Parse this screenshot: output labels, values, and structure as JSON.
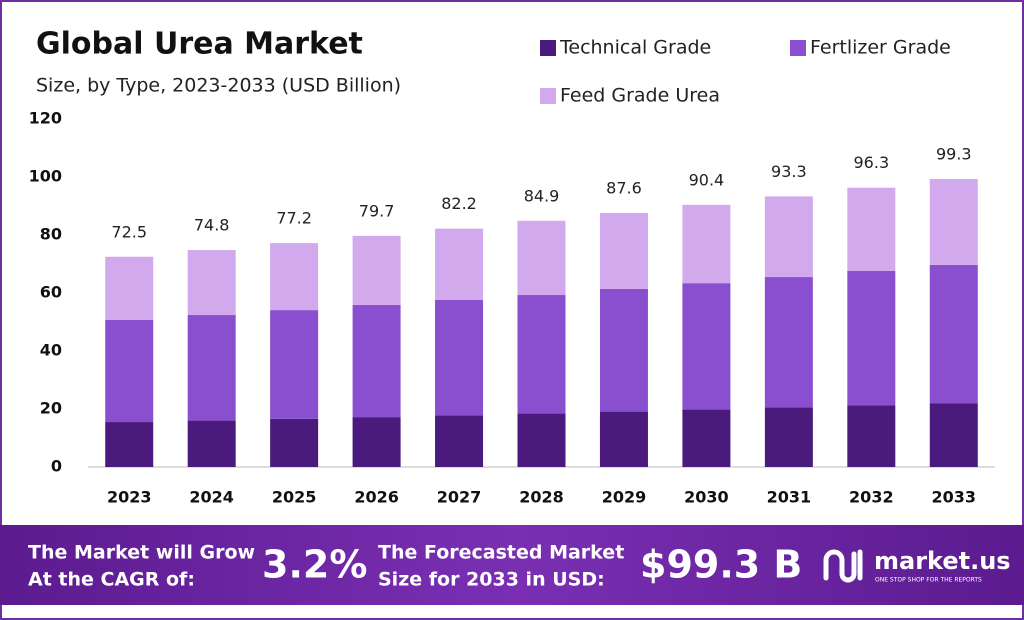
{
  "chart_data": {
    "type": "stacked_bar",
    "title": "Global Urea Market",
    "subtitle": "Size, by Type, 2023-2033 (USD Billion)",
    "categories": [
      "2023",
      "2024",
      "2025",
      "2026",
      "2027",
      "2028",
      "2029",
      "2030",
      "2031",
      "2032",
      "2033"
    ],
    "series": [
      {
        "name": "Technical Grade",
        "color": "#4a1a7c",
        "values": [
          15.5,
          16.0,
          16.6,
          17.2,
          17.8,
          18.5,
          19.1,
          19.8,
          20.5,
          21.2,
          21.9
        ]
      },
      {
        "name": "Fertlizer Grade",
        "color": "#8a4fcf",
        "values": [
          35.2,
          36.4,
          37.5,
          38.7,
          39.8,
          40.8,
          42.3,
          43.6,
          45.0,
          46.4,
          47.8
        ]
      },
      {
        "name": "Feed Grade Urea",
        "color": "#d2a9ec",
        "values": [
          21.8,
          22.4,
          23.1,
          23.8,
          24.6,
          25.6,
          26.2,
          27.0,
          27.8,
          28.7,
          29.6
        ]
      }
    ],
    "totals": [
      72.5,
      74.8,
      77.2,
      79.7,
      82.2,
      84.9,
      87.6,
      90.4,
      93.3,
      96.3,
      99.3
    ],
    "ylim": [
      0,
      120
    ],
    "yticks": [
      0,
      20,
      40,
      60,
      80,
      100,
      120
    ],
    "grid": false
  },
  "footer": {
    "cagr_text": [
      "The Market will Grow",
      "At the CAGR of:"
    ],
    "cagr": "3.2%",
    "forecast_text": [
      "The Forecasted Market",
      "Size for 2033 in USD:"
    ],
    "forecast": "$99.3 B",
    "brand": "market.us",
    "tagline": "ONE STOP SHOP FOR THE REPORTS"
  }
}
